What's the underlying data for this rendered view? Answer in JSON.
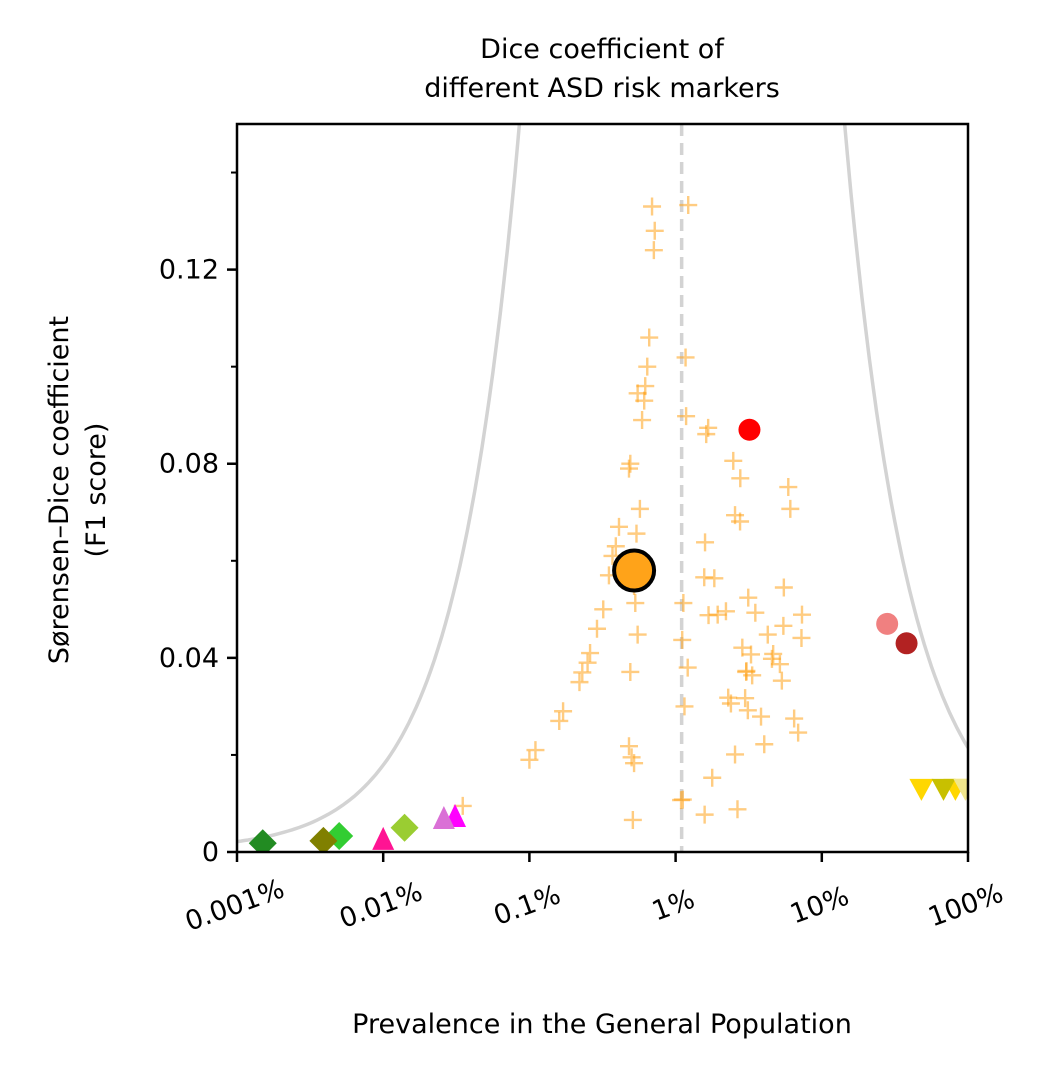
{
  "chart_data": {
    "type": "scatter",
    "title_lines": [
      "Dice coefficient of",
      "different ASD risk markers"
    ],
    "xlabel": "Prevalence in the General Population",
    "ylabel_lines": [
      "Sørensen–Dice coefficient",
      "(F1 score)"
    ],
    "x_scale": "log",
    "xlim": [
      1e-05,
      1.0
    ],
    "ylim": [
      0,
      0.15
    ],
    "x_ticks": [
      {
        "value": 1e-05,
        "label": "0.001%"
      },
      {
        "value": 0.0001,
        "label": "0.01%"
      },
      {
        "value": 0.001,
        "label": "0.1%"
      },
      {
        "value": 0.01,
        "label": "1%"
      },
      {
        "value": 0.1,
        "label": "10%"
      },
      {
        "value": 1.0,
        "label": "100%"
      }
    ],
    "y_ticks": [
      {
        "value": 0,
        "label": "0"
      },
      {
        "value": 0.04,
        "label": "0.04"
      },
      {
        "value": 0.08,
        "label": "0.08"
      },
      {
        "value": 0.12,
        "label": "0.12"
      }
    ],
    "y_minor_ticks": [
      0.02,
      0.06,
      0.1,
      0.14
    ],
    "grid": false,
    "reference_line": {
      "x": 0.011,
      "style": "dashed",
      "color": "#d3d3d3"
    },
    "envelope_curves": {
      "color": "#d3d3d3"
    },
    "highlight_point": {
      "x": 0.0052,
      "y": 0.058,
      "color": "#ffa319",
      "edge": "#000000"
    },
    "cross_series": {
      "color": "#ffa319",
      "points": [
        [
          0.0069,
          0.133
        ],
        [
          0.0072,
          0.128
        ],
        [
          0.0071,
          0.124
        ],
        [
          0.0066,
          0.106
        ],
        [
          0.0064,
          0.1
        ],
        [
          0.0062,
          0.096
        ],
        [
          0.0061,
          0.093
        ],
        [
          0.0059,
          0.089
        ],
        [
          0.0049,
          0.08
        ],
        [
          0.0048,
          0.079
        ],
        [
          0.0041,
          0.067
        ],
        [
          0.0039,
          0.063
        ],
        [
          0.0037,
          0.061
        ],
        [
          0.0035,
          0.057
        ],
        [
          0.0032,
          0.05
        ],
        [
          0.0029,
          0.046
        ],
        [
          0.0026,
          0.041
        ],
        [
          0.0025,
          0.039
        ],
        [
          0.0023,
          0.037
        ],
        [
          0.0022,
          0.035
        ],
        [
          0.0017,
          0.029
        ],
        [
          0.0016,
          0.027
        ],
        [
          0.0011,
          0.021
        ],
        [
          0.001,
          0.019
        ],
        [
          0.00035,
          0.0095
        ],
        [
          0.0122,
          0.1333
        ],
        [
          0.0117,
          0.1019
        ],
        [
          0.0118,
          0.0898
        ],
        [
          0.0113,
          0.0513
        ],
        [
          0.0111,
          0.0437
        ],
        [
          0.0121,
          0.038
        ],
        [
          0.0115,
          0.03
        ],
        [
          0.0109,
          0.0107
        ],
        [
          0.0055,
          0.0945
        ],
        [
          0.0057,
          0.0707
        ],
        [
          0.0054,
          0.0656
        ],
        [
          0.0052,
          0.0548
        ],
        [
          0.0053,
          0.0513
        ],
        [
          0.0055,
          0.0448
        ],
        [
          0.0049,
          0.0371
        ],
        [
          0.0048,
          0.0218
        ],
        [
          0.005,
          0.0195
        ],
        [
          0.0052,
          0.0183
        ],
        [
          0.0051,
          0.0066
        ],
        [
          0.0112,
          0.0108
        ],
        [
          0.0167,
          0.0874
        ],
        [
          0.0162,
          0.0861
        ],
        [
          0.0248,
          0.0806
        ],
        [
          0.0277,
          0.077
        ],
        [
          0.0255,
          0.0694
        ],
        [
          0.0276,
          0.0681
        ],
        [
          0.0159,
          0.0638
        ],
        [
          0.0157,
          0.0566
        ],
        [
          0.0184,
          0.0564
        ],
        [
          0.0168,
          0.0488
        ],
        [
          0.0221,
          0.0496
        ],
        [
          0.0314,
          0.0524
        ],
        [
          0.0194,
          0.0489
        ],
        [
          0.0305,
          0.0373
        ],
        [
          0.0286,
          0.0421
        ],
        [
          0.0328,
          0.0407
        ],
        [
          0.0239,
          0.0306
        ],
        [
          0.0312,
          0.0292
        ],
        [
          0.0384,
          0.0279
        ],
        [
          0.0255,
          0.0201
        ],
        [
          0.0404,
          0.0222
        ],
        [
          0.0178,
          0.0153
        ],
        [
          0.0158,
          0.0077
        ],
        [
          0.0265,
          0.0088
        ],
        [
          0.059,
          0.0752
        ],
        [
          0.0609,
          0.0707
        ],
        [
          0.055,
          0.0545
        ],
        [
          0.0427,
          0.0448
        ],
        [
          0.0456,
          0.0398
        ],
        [
          0.0517,
          0.0387
        ],
        [
          0.0465,
          0.0408
        ],
        [
          0.0546,
          0.0466
        ],
        [
          0.0732,
          0.0489
        ],
        [
          0.0726,
          0.0441
        ],
        [
          0.0647,
          0.0275
        ],
        [
          0.0689,
          0.0246
        ],
        [
          0.0229,
          0.0318
        ],
        [
          0.0304,
          0.0371
        ],
        [
          0.0533,
          0.0353
        ],
        [
          0.0334,
          0.0364
        ],
        [
          0.0299,
          0.0317
        ],
        [
          0.0351,
          0.0493
        ]
      ]
    },
    "marker_series": [
      {
        "shape": "circle",
        "color": "#ff0000",
        "points": [
          [
            0.032,
            0.087
          ]
        ]
      },
      {
        "shape": "circle",
        "color": "#f08080",
        "points": [
          [
            0.28,
            0.047
          ]
        ]
      },
      {
        "shape": "circle",
        "color": "#b22222",
        "points": [
          [
            0.38,
            0.043
          ]
        ]
      },
      {
        "shape": "triangle-down",
        "color": "#ffd700",
        "points": [
          [
            0.48,
            0.013
          ],
          [
            0.82,
            0.013
          ]
        ]
      },
      {
        "shape": "triangle-down",
        "color": "#c8c000",
        "points": [
          [
            0.68,
            0.013
          ]
        ]
      },
      {
        "shape": "triangle-down",
        "color": "#f0e68c",
        "points": [
          [
            0.96,
            0.013
          ]
        ]
      },
      {
        "shape": "triangle-up",
        "color": "#ff00ff",
        "points": [
          [
            0.00031,
            0.0072
          ]
        ]
      },
      {
        "shape": "triangle-up",
        "color": "#da70d6",
        "points": [
          [
            0.00026,
            0.0068
          ]
        ]
      },
      {
        "shape": "triangle-up",
        "color": "#ff1493",
        "points": [
          [
            0.0001,
            0.0025
          ]
        ]
      },
      {
        "shape": "diamond",
        "color": "#9acd32",
        "points": [
          [
            0.00014,
            0.005
          ]
        ]
      },
      {
        "shape": "diamond",
        "color": "#32cd32",
        "points": [
          [
            5e-05,
            0.0033
          ]
        ]
      },
      {
        "shape": "diamond",
        "color": "#808000",
        "points": [
          [
            3.9e-05,
            0.0023
          ]
        ]
      },
      {
        "shape": "diamond",
        "color": "#228b22",
        "points": [
          [
            1.5e-05,
            0.0018
          ]
        ]
      }
    ]
  }
}
